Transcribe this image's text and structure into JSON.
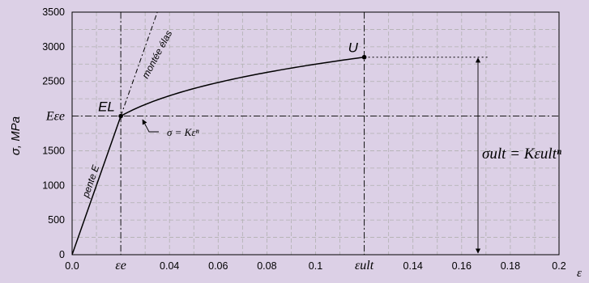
{
  "chart_data": {
    "type": "line",
    "title": "",
    "xlabel": "ε",
    "ylabel": "σ, MPa",
    "xlim": [
      0,
      0.2
    ],
    "ylim": [
      0,
      3500
    ],
    "xticks": [
      0.0,
      0.02,
      0.04,
      0.06,
      0.08,
      0.1,
      0.12,
      0.14,
      0.16,
      0.18,
      0.2
    ],
    "xtick_labels": [
      "0.0",
      "εe",
      "0.04",
      "0.06",
      "0.08",
      "0.1",
      "εult",
      "0.14",
      "0.16",
      "0.18",
      "0.2"
    ],
    "yticks": [
      0,
      500,
      1000,
      1500,
      2000,
      2500,
      3000,
      3500
    ],
    "ytick_labels": [
      "0",
      "500",
      "1000",
      "1500",
      "Eεe",
      "2500",
      "3000",
      "3500"
    ],
    "grid": true,
    "background_color": "#dcd0e6",
    "grid_color": "#b0b0b0",
    "line_color": "#000000",
    "series": [
      {
        "role": "elastic",
        "x": [
          0,
          0.02
        ],
        "y": [
          0,
          2000
        ]
      },
      {
        "role": "plastic",
        "x": [
          0.02,
          0.03,
          0.04,
          0.05,
          0.06,
          0.07,
          0.08,
          0.09,
          0.1,
          0.11,
          0.12
        ],
        "y": [
          2000,
          2166,
          2294,
          2398,
          2485,
          2562,
          2631,
          2693,
          2749,
          2800,
          2850
        ]
      },
      {
        "role": "elastic-extension",
        "x": [
          0.02,
          0.035
        ],
        "y": [
          2000,
          3500
        ]
      }
    ],
    "points": [
      {
        "label": "EL",
        "x": 0.02,
        "y": 2000
      },
      {
        "label": "U",
        "x": 0.12,
        "y": 2850
      }
    ],
    "reference_lines": {
      "horizontal_y": [
        2000,
        2850
      ],
      "vertical_x": [
        0.02,
        0.12
      ]
    },
    "annotations": {
      "elastic_slope": "pente E",
      "elastic_extension": "montée élas",
      "plastic_law": "σ = Kεⁿ",
      "ultimate_law": "σult = Kεultⁿ"
    }
  }
}
